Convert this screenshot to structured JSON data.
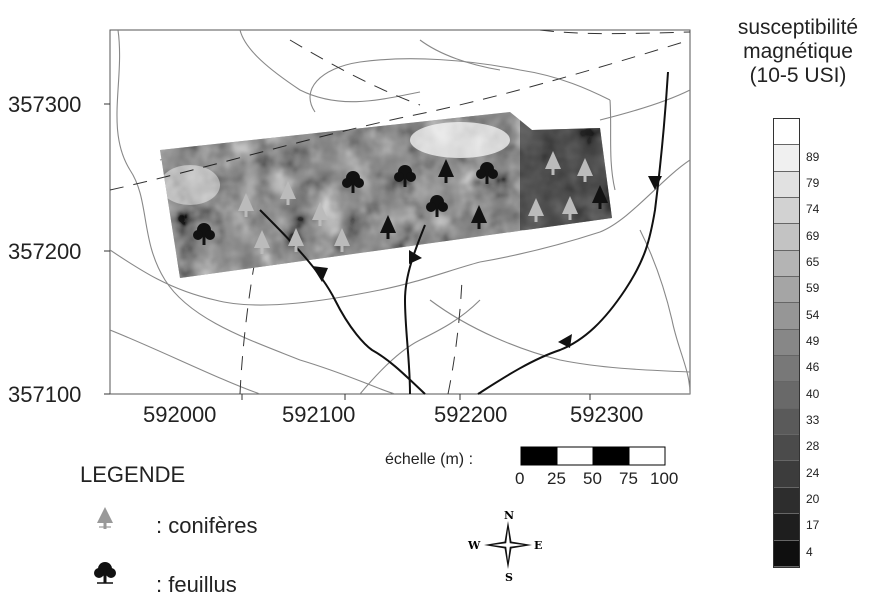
{
  "map": {
    "y_ticks": [
      "357300",
      "357200",
      "357100"
    ],
    "x_ticks": [
      "592000",
      "592100",
      "592200",
      "592300"
    ]
  },
  "colorbar": {
    "title_line1": "susceptibilité",
    "title_line2": "magnétique",
    "title_line3": "(10-5 USI)",
    "labels": [
      "89",
      "79",
      "74",
      "69",
      "65",
      "59",
      "54",
      "49",
      "46",
      "40",
      "33",
      "28",
      "24",
      "20",
      "17",
      "4"
    ]
  },
  "legend": {
    "title": "LEGENDE",
    "conifer_label": ": conifères",
    "deciduous_label": ": feuillus"
  },
  "scale": {
    "label": "échelle (m) :",
    "ticks": [
      "0",
      "25",
      "50",
      "75",
      "100"
    ]
  },
  "compass": {
    "n": "N",
    "s": "S",
    "e": "E",
    "w": "W"
  }
}
